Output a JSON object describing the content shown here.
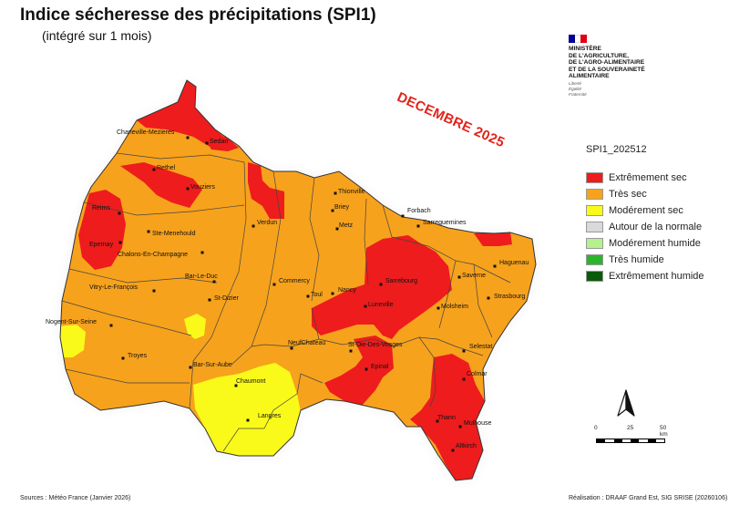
{
  "title": "Indice sécheresse des précipitations (SPI1)",
  "subtitle": "(intégré sur 1 mois)",
  "date_stamp": "DECEMBRE 2025",
  "ministry": {
    "line1": "MINISTÈRE",
    "line2": "DE L'AGRICULTURE,",
    "line3": "DE L'AGRO-ALIMENTAIRE",
    "line4": "ET DE LA SOUVERAINETÉ",
    "line5": "ALIMENTAIRE",
    "motto1": "Liberté",
    "motto2": "Égalité",
    "motto3": "Fraternité",
    "flag_colors": [
      "#000091",
      "#ffffff",
      "#e1000f"
    ]
  },
  "legend": {
    "title": "SPI1_202512",
    "items": [
      {
        "label": "Extrêmement sec",
        "color": "#ee1c1c"
      },
      {
        "label": "Très sec",
        "color": "#f7a21c"
      },
      {
        "label": "Modérement sec",
        "color": "#fafa1a"
      },
      {
        "label": "Autour de la normale",
        "color": "#d9d9d9"
      },
      {
        "label": "Modérement humide",
        "color": "#b3f28c"
      },
      {
        "label": "Très humide",
        "color": "#2db32d"
      },
      {
        "label": "Extrêmement humide",
        "color": "#0b5a0b"
      }
    ]
  },
  "cities": [
    {
      "name": "Charleville-Mezieres"
    },
    {
      "name": "Sedan"
    },
    {
      "name": "Rethel"
    },
    {
      "name": "Vouziers"
    },
    {
      "name": "Reims"
    },
    {
      "name": "Epernay"
    },
    {
      "name": "Ste-Menehould"
    },
    {
      "name": "Chalons-En-Champagne"
    },
    {
      "name": "Verdun"
    },
    {
      "name": "Thionville"
    },
    {
      "name": "Briey"
    },
    {
      "name": "Metz"
    },
    {
      "name": "Forbach"
    },
    {
      "name": "Sarreguemines"
    },
    {
      "name": "Haguenau"
    },
    {
      "name": "Saverne"
    },
    {
      "name": "Sarrebourg"
    },
    {
      "name": "Strasbourg"
    },
    {
      "name": "Bar-Le-Duc"
    },
    {
      "name": "Commercy"
    },
    {
      "name": "Toul"
    },
    {
      "name": "Nancy"
    },
    {
      "name": "Luneville"
    },
    {
      "name": "Molsheim"
    },
    {
      "name": "Vitry-Le-François"
    },
    {
      "name": "St-Dizier"
    },
    {
      "name": "Nogent-Sur-Seine"
    },
    {
      "name": "Troyes"
    },
    {
      "name": "Bar-Sur-Aube"
    },
    {
      "name": "NeufChateau"
    },
    {
      "name": "St-Die-Des-Vosges"
    },
    {
      "name": "Selestat"
    },
    {
      "name": "Epinal"
    },
    {
      "name": "Colmar"
    },
    {
      "name": "Chaumont"
    },
    {
      "name": "Langres"
    },
    {
      "name": "Thann"
    },
    {
      "name": "Mulhouse"
    },
    {
      "name": "Altkirch"
    }
  ],
  "scale": {
    "ticks": [
      "0",
      "25",
      "50 km"
    ]
  },
  "sources": "Sources : Météo France (Janvier 2026)",
  "credits": "Réalisation : DRAAF Grand Est, SIG SRISE (20260106)"
}
